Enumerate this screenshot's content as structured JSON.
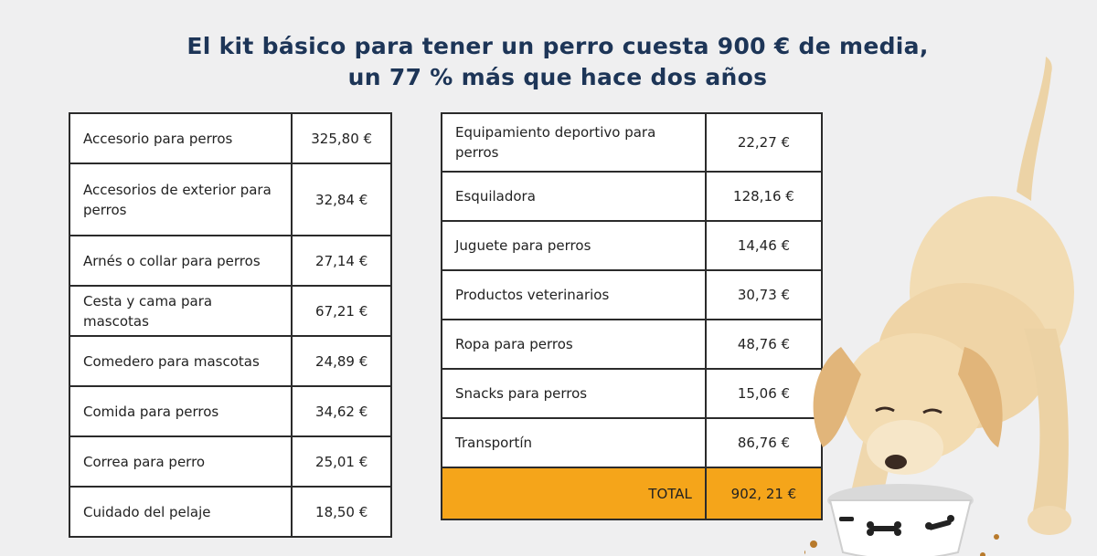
{
  "title": {
    "line1": "El kit básico para tener un perro cuesta 900 € de media,",
    "line2": "un 77 % más que hace dos años"
  },
  "left_table": [
    {
      "item": "Accesorio para perros",
      "price": "325,80 €"
    },
    {
      "item": "Accesorios de exterior para perros",
      "price": "32,84 €"
    },
    {
      "item": "Arnés o collar para perros",
      "price": "27,14 €"
    },
    {
      "item": "Cesta y cama para mascotas",
      "price": "67,21 €"
    },
    {
      "item": "Comedero para mascotas",
      "price": "24,89 €"
    },
    {
      "item": "Comida para perros",
      "price": "34,62 €"
    },
    {
      "item": "Correa para perro",
      "price": "25,01 €"
    },
    {
      "item": "Cuidado del pelaje",
      "price": "18,50 €"
    }
  ],
  "right_table": [
    {
      "item": "Equipamiento deportivo para perros",
      "price": "22,27 €"
    },
    {
      "item": "Esquiladora",
      "price": "128,16 €"
    },
    {
      "item": "Juguete para perros",
      "price": "14,46 €"
    },
    {
      "item": "Productos veterinarios",
      "price": "30,73 €"
    },
    {
      "item": "Ropa para perros",
      "price": "48,76 €"
    },
    {
      "item": "Snacks para perros",
      "price": "15,06 €"
    },
    {
      "item": "Transportín",
      "price": "86,76 €"
    }
  ],
  "total": {
    "label": "TOTAL",
    "value": "902, 21 €"
  },
  "colors": {
    "title": "#1d3557",
    "total_bg": "#f5a51a",
    "border": "#2b2b2b"
  }
}
